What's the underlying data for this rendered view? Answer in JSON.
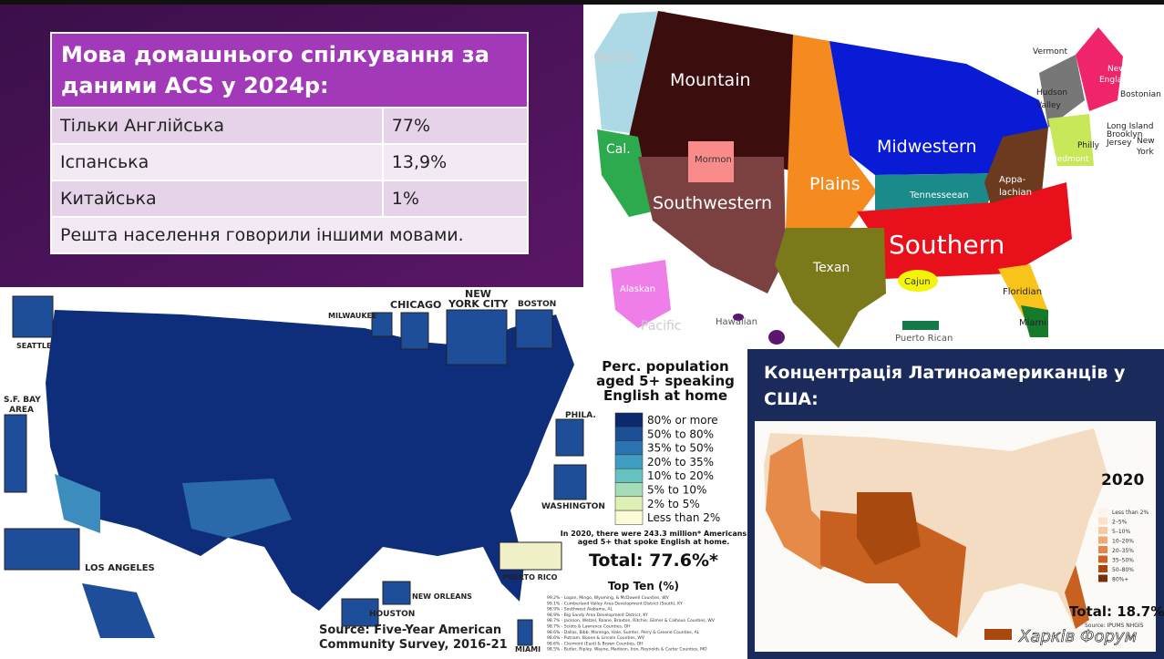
{
  "table": {
    "title": "Мова домашнього спілкування за даними ACS у 2024р:",
    "rows": [
      [
        "Тільки Англійська",
        "77%"
      ],
      [
        "Іспанська",
        "13,9%"
      ],
      [
        "Китайська",
        "1%"
      ]
    ],
    "note": "Решта населення говорили іншими мовами."
  },
  "dialect_map": {
    "labels": {
      "pacific": "Pacific",
      "mountain": "Mountain",
      "midwestern": "Midwestern",
      "plains": "Plains",
      "southwestern": "Southwestern",
      "southern": "Southern",
      "texan": "Texan",
      "tennesseean": "Tennesseean",
      "appalachian_1": "Appa-",
      "appalachian_2": "lachian",
      "cal": "Cal.",
      "mormon": "Mormon",
      "cajun": "Cajun",
      "floridian": "Floridian",
      "miami": "Miami",
      "vermont": "Vermont",
      "new_england_1": "New",
      "new_england_2": "England",
      "bostonian": "Bostonian",
      "hudson_1": "Hudson",
      "hudson_2": "Valley",
      "long_island": "Long Island",
      "brooklyn": "Brooklyn",
      "jersey": "Jersey",
      "new_york_1": "New",
      "new_york_2": "York",
      "philly": "Philly",
      "piedmont": "Piedmont",
      "alaskan": "Alaskan",
      "hawaiian": "Hawaiian",
      "pacific_2": "Pacific",
      "puerto_rican": "Puerto Rican"
    }
  },
  "english_map": {
    "title_lines": [
      "Perc. population",
      "aged 5+ speaking",
      "English at home"
    ],
    "legend": [
      "80% or more",
      "50% to 80%",
      "35% to 50%",
      "20% to 35%",
      "10% to 20%",
      "5% to 10%",
      "2% to 5%",
      "Less than 2%"
    ],
    "insets": {
      "seattle": "SEATTLE",
      "milwaukee": "MILWAUKEE",
      "chicago": "CHICAGO",
      "nyc_1": "NEW",
      "nyc_2": "YORK CITY",
      "boston": "BOSTON",
      "sf_1": "S.F. BAY",
      "sf_2": "AREA",
      "phila": "PHILA.",
      "washington": "WASHINGTON",
      "los_angeles": "LOS ANGELES",
      "houston": "HOUSTON",
      "new_orleans": "NEW ORLEANS",
      "puerto_rico": "PUERTO RICO",
      "miami": "MIAMI"
    },
    "note_lines": [
      "In 2020, there were 243.3 million* Americans",
      "aged 5+ that spoke English at home."
    ],
    "total": "Total: 77.6%*",
    "top_ten_title": "Top Ten (%)",
    "top_ten": [
      "99.2% - Logan, Mingo, Wyoming, & McDowell Counties, WV",
      "99.1% - Cumberland Valley Area Development District (South), KY",
      "98.9% - Southwest Alabama, AL",
      "98.9% - Big Sandy Area Development District, KY",
      "98.7% - Jackson, Wetzel, Roane, Braxton, Ritchie, Gilmer & Calhoun Counties, WV",
      "98.7% - Scioto & Lawrence Counties, OH",
      "98.6% - Dallas, Bibb, Marengo, Hale, Sumter, Perry & Greene Counties, AL",
      "98.6% - Putnam, Boone & Lincoln Counties, WV",
      "98.6% - Clermont (East) & Brown Counties, OH",
      "98.5% - Butler, Ripley, Wayne, Madison, Iron, Reynolds & Carter Counties, MO"
    ],
    "source_lines": [
      "Source: Five-Year American",
      "Community Survey, 2016-21"
    ]
  },
  "latino_map": {
    "title_lines": [
      "Концентрація Латиноамериканців у",
      "США:"
    ],
    "year": "2020",
    "legend": [
      "Less than 2%",
      "2–5%",
      "5–10%",
      "10–20%",
      "20–35%",
      "35–50%",
      "50–80%",
      "80%+"
    ],
    "total": "Total: 18.7%",
    "source": "Source: IPUMS NHGIS"
  },
  "watermark": "Харків Форум"
}
